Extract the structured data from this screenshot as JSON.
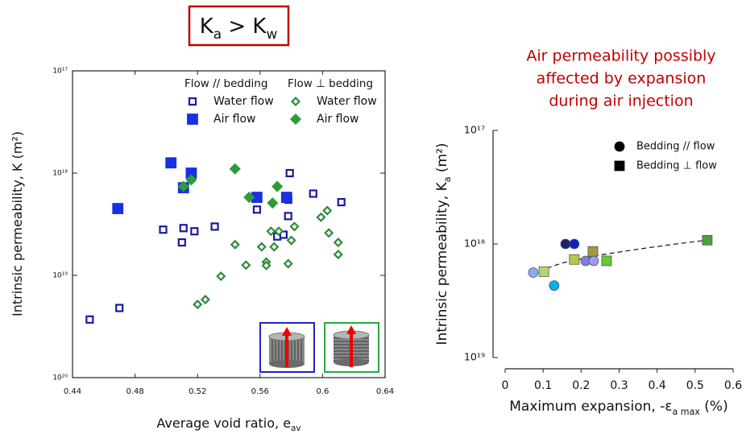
{
  "chart_data": [
    {
      "type": "scatter",
      "title": [
        "K",
        "a",
        " > K",
        "w"
      ],
      "xlabel": [
        "Average void ratio, e",
        "av"
      ],
      "ylabel": [
        "Intrinsic permeability, K (m²)"
      ],
      "yscale": "log",
      "xlim": [
        0.44,
        0.64
      ],
      "xticks": [
        0.44,
        0.48,
        0.52,
        0.56,
        0.6,
        0.64
      ],
      "ylim": [
        1e-20,
        1e-17
      ],
      "yticks": [
        {
          "value": 1e-20,
          "label": "10²⁰"
        },
        {
          "value": 1e-19,
          "label": "10¹⁹"
        },
        {
          "value": 1e-18,
          "label": "10¹⁸"
        },
        {
          "value": 1e-17,
          "label": "10¹⁷"
        }
      ],
      "legend_titles": [
        "Flow // bedding",
        "Flow ⊥ bedding"
      ],
      "series": [
        {
          "name": "Water flow",
          "color": "#1a1aa0",
          "marker": "square-open",
          "x": [
            0.451,
            0.47,
            0.498,
            0.51,
            0.511,
            0.518,
            0.531,
            0.558,
            0.571,
            0.575,
            0.578,
            0.578,
            0.579,
            0.594,
            0.612
          ],
          "values": [
            3.7e-20,
            4.8e-20,
            2.8e-19,
            2.1e-19,
            2.9e-19,
            2.7e-19,
            3e-19,
            4.4e-19,
            2.4e-19,
            2.5e-19,
            3.8e-19,
            5.5e-19,
            1e-18,
            6.3e-19,
            5.2e-19
          ]
        },
        {
          "name": "Air flow",
          "color": "#1a2fe0",
          "marker": "square",
          "x": [
            0.469,
            0.503,
            0.511,
            0.516,
            0.558,
            0.577
          ],
          "values": [
            4.5e-19,
            1.26e-18,
            7.2e-19,
            1e-18,
            5.8e-19,
            5.8e-19
          ]
        },
        {
          "name": "Water flow",
          "color": "#2e8b3a",
          "marker": "diamond-open",
          "x": [
            0.52,
            0.525,
            0.535,
            0.544,
            0.551,
            0.561,
            0.564,
            0.564,
            0.567,
            0.569,
            0.572,
            0.578,
            0.58,
            0.582,
            0.599,
            0.603,
            0.604,
            0.61,
            0.61
          ],
          "values": [
            5.2e-20,
            5.8e-20,
            9.8e-20,
            2e-19,
            1.26e-19,
            1.9e-19,
            1.35e-19,
            1.25e-19,
            2.7e-19,
            1.9e-19,
            2.7e-19,
            1.3e-19,
            2.2e-19,
            3e-19,
            3.7e-19,
            4.3e-19,
            2.6e-19,
            2.1e-19,
            1.6e-19
          ]
        },
        {
          "name": "Air flow",
          "color": "#2e9b3a",
          "marker": "diamond",
          "x": [
            0.511,
            0.516,
            0.544,
            0.553,
            0.568,
            0.571
          ],
          "values": [
            7.4e-19,
            8.6e-19,
            1.1e-18,
            5.8e-19,
            5.1e-19,
            7.4e-19
          ]
        }
      ]
    },
    {
      "type": "scatter",
      "annotation": [
        "Air permeability possibly",
        "affected by expansion",
        "during air injection"
      ],
      "xlabel": [
        "Maximum expansion, -ε",
        "a max",
        " (%)"
      ],
      "ylabel": [
        "Intrinsic permeability, K",
        "a",
        " (m²)"
      ],
      "yscale": "log",
      "xlim": [
        0,
        0.6
      ],
      "xticks": [
        0,
        0.1,
        0.2,
        0.3,
        0.4,
        0.5,
        0.6
      ],
      "ylim": [
        1e-19,
        1e-17
      ],
      "yticks": [
        {
          "value": 1e-19,
          "label": "10¹⁹"
        },
        {
          "value": 1e-18,
          "label": "10¹⁸"
        },
        {
          "value": 1e-17,
          "label": "10¹⁷"
        }
      ],
      "series": [
        {
          "name": "Bedding // flow",
          "color": "#000000",
          "marker": "circle",
          "colors": [
            "#8fa8f0",
            "#00b0f0",
            "#1f1f6e",
            "#1020c0",
            "#8080e0",
            "#9a9aee"
          ],
          "x": [
            0.074,
            0.129,
            0.159,
            0.182,
            0.212,
            0.233
          ],
          "values": [
            5.6e-19,
            4.3e-19,
            1e-18,
            1e-18,
            7.1e-19,
            7.1e-19
          ]
        },
        {
          "name": "Bedding ⊥ flow",
          "color": "#000000",
          "marker": "square",
          "colors": [
            "#b0d870",
            "#b8c84a",
            "#a09a40",
            "#66cc33",
            "#4ca040"
          ],
          "x": [
            0.102,
            0.182,
            0.231,
            0.267,
            0.532
          ],
          "values": [
            5.7e-19,
            7.3e-19,
            8.6e-19,
            7.1e-19,
            1.08e-18
          ]
        }
      ],
      "trend_line": {
        "x": [
          0.07,
          0.15,
          0.25,
          0.35,
          0.45,
          0.53
        ],
        "values": [
          5.5e-19,
          6.8e-19,
          8e-19,
          9e-19,
          1e-18,
          1.08e-18
        ]
      }
    }
  ]
}
